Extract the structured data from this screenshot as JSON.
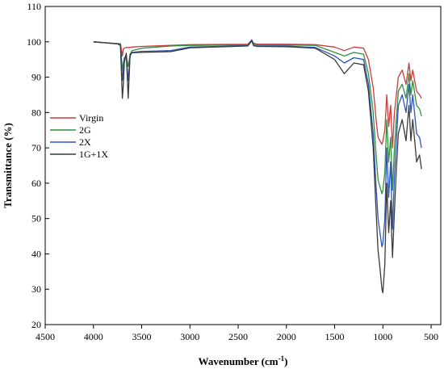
{
  "chart_data": {
    "type": "line",
    "title": "",
    "xlabel": "Wavenumber (cm⁻¹)",
    "xlabel_main": "Wavenumber (cm",
    "xlabel_sup": "-1",
    "xlabel_end": ")",
    "ylabel": "Transmittance (%)",
    "xlim": [
      4500,
      400
    ],
    "ylim": [
      20,
      110
    ],
    "x_ticks": [
      4500,
      4000,
      3500,
      3000,
      2500,
      2000,
      1500,
      1000,
      500
    ],
    "y_ticks": [
      20,
      30,
      40,
      50,
      60,
      70,
      80,
      90,
      100,
      110
    ],
    "x_tick_labels": [
      "4500",
      "4000",
      "3500",
      "3000",
      "2500",
      "2000",
      "1500",
      "1000",
      "500"
    ],
    "y_tick_labels": [
      "20",
      "30",
      "40",
      "50",
      "60",
      "70",
      "80",
      "90",
      "100",
      "110"
    ],
    "grid": false,
    "legend_position": "left-middle",
    "series": [
      {
        "name": "Virgin",
        "color": "#c83c3c",
        "x": [
          4000,
          3750,
          3720,
          3700,
          3690,
          3680,
          3660,
          3640,
          3620,
          3600,
          3500,
          3200,
          3000,
          2400,
          2360,
          2340,
          2300,
          2000,
          1700,
          1500,
          1400,
          1300,
          1200,
          1150,
          1100,
          1070,
          1050,
          1030,
          1010,
          1000,
          980,
          960,
          940,
          920,
          900,
          880,
          860,
          840,
          800,
          760,
          730,
          710,
          690,
          650,
          620,
          600
        ],
        "y": [
          100,
          99.5,
          99.5,
          96,
          98,
          98.2,
          98.4,
          98.4,
          98.4,
          98.5,
          98.7,
          99,
          99.2,
          99.3,
          100.5,
          99.6,
          99.3,
          99.3,
          99.2,
          98.5,
          97.5,
          98.5,
          98.2,
          95,
          87,
          78,
          73,
          72,
          71,
          72,
          75,
          85,
          76,
          82,
          70,
          80,
          85,
          90,
          92,
          88,
          94,
          89,
          92,
          86,
          85,
          84
        ]
      },
      {
        "name": "2G",
        "color": "#2f8f3f",
        "x": [
          4000,
          3750,
          3720,
          3700,
          3690,
          3680,
          3660,
          3640,
          3620,
          3600,
          3500,
          3200,
          3000,
          2400,
          2360,
          2340,
          2300,
          2000,
          1700,
          1500,
          1400,
          1300,
          1200,
          1150,
          1100,
          1070,
          1050,
          1030,
          1010,
          1000,
          980,
          960,
          940,
          920,
          900,
          880,
          860,
          840,
          800,
          760,
          730,
          710,
          690,
          650,
          620,
          600
        ],
        "y": [
          100,
          99.5,
          99.3,
          92,
          94,
          95.5,
          96,
          93,
          96.5,
          97.5,
          98.2,
          98.8,
          99,
          99.1,
          100.5,
          99.4,
          99.1,
          99.1,
          99,
          97,
          96,
          97,
          96.5,
          91,
          80,
          68,
          61,
          59,
          57,
          58,
          63,
          78,
          66,
          73,
          58,
          70,
          78,
          86,
          88,
          84,
          91,
          85,
          89,
          82,
          81,
          79
        ]
      },
      {
        "name": "2X",
        "color": "#2c54b8",
        "x": [
          4000,
          3750,
          3720,
          3700,
          3690,
          3680,
          3660,
          3640,
          3620,
          3600,
          3500,
          3200,
          3000,
          2400,
          2360,
          2340,
          2300,
          2000,
          1700,
          1500,
          1400,
          1300,
          1200,
          1150,
          1100,
          1070,
          1050,
          1030,
          1010,
          1000,
          980,
          960,
          940,
          920,
          900,
          880,
          860,
          840,
          800,
          760,
          730,
          710,
          690,
          650,
          620,
          600
        ],
        "y": [
          100,
          99.4,
          99.1,
          89,
          92,
          95,
          96.5,
          89,
          96,
          97,
          97.3,
          97.5,
          98.5,
          98.9,
          100.6,
          99,
          98.8,
          98.8,
          98.4,
          96,
          94,
          95.5,
          95,
          88,
          74,
          59,
          50,
          46,
          42,
          43,
          50,
          70,
          56,
          66,
          47,
          62,
          72,
          82,
          85,
          80,
          88,
          80,
          85,
          74,
          73,
          70
        ]
      },
      {
        "name": "1G+1X",
        "color": "#3a3a3a",
        "x": [
          4000,
          3750,
          3720,
          3700,
          3690,
          3680,
          3660,
          3640,
          3620,
          3600,
          3500,
          3200,
          3000,
          2400,
          2360,
          2340,
          2300,
          2000,
          1700,
          1500,
          1400,
          1300,
          1200,
          1150,
          1100,
          1070,
          1050,
          1030,
          1010,
          1000,
          980,
          960,
          940,
          920,
          900,
          880,
          860,
          840,
          800,
          760,
          730,
          710,
          690,
          650,
          620,
          600
        ],
        "y": [
          100,
          99.4,
          99,
          84,
          88,
          94,
          96.8,
          84,
          96.5,
          96.9,
          97,
          97.2,
          98.3,
          98.8,
          100.3,
          98.9,
          98.7,
          98.6,
          98.2,
          95,
          91,
          94,
          93.5,
          86,
          70,
          52,
          41,
          36,
          30,
          29,
          37,
          60,
          46,
          55,
          39,
          52,
          64,
          74,
          78,
          72,
          82,
          72,
          78,
          66,
          68,
          64
        ]
      }
    ]
  }
}
